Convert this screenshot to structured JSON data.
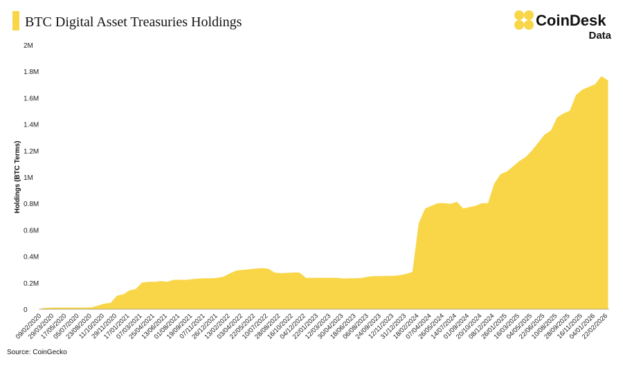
{
  "brand": {
    "name": "CoinDesk",
    "sub": "Data"
  },
  "chart_data": {
    "type": "area",
    "title": "BTC Digital Asset Treasuries Holdings",
    "y_label": "Holdings (BTC Terms)",
    "source": "Source: CoinGecko",
    "color": "#f8d648",
    "grid": false,
    "categories": [
      "09/02/2020",
      null,
      "29/03/2020",
      null,
      "17/05/2020",
      null,
      "05/07/2020",
      null,
      "23/08/2020",
      null,
      "11/10/2020",
      null,
      "29/11/2020",
      null,
      "17/01/2021",
      null,
      "07/03/2021",
      null,
      "25/04/2021",
      null,
      "13/06/2021",
      null,
      "01/08/2021",
      null,
      "19/09/2021",
      null,
      "07/11/2021",
      null,
      "26/12/2021",
      null,
      "13/02/2022",
      null,
      "03/04/2022",
      null,
      "22/05/2022",
      null,
      "10/07/2022",
      null,
      "28/08/2022",
      null,
      "16/10/2022",
      null,
      "04/12/2022",
      null,
      "22/01/2023",
      null,
      "12/03/2023",
      null,
      "30/04/2023",
      null,
      "18/06/2023",
      null,
      "06/08/2023",
      null,
      "24/09/2023",
      null,
      "12/11/2023",
      null,
      "31/12/2023",
      null,
      "18/02/2024",
      null,
      "07/04/2024",
      null,
      "26/05/2024",
      null,
      "14/07/2024",
      null,
      "01/09/2024",
      null,
      "20/10/2024",
      null,
      "08/12/2024",
      null,
      "26/01/2025",
      null,
      "16/03/2025",
      null,
      "04/05/2025",
      null,
      "22/06/2025",
      null,
      "10/08/2025",
      null,
      "28/09/2025",
      null,
      "16/11/2025",
      null,
      "04/01/2026",
      null,
      "22/02/2026"
    ],
    "values": [
      5000,
      8000,
      10000,
      10000,
      10000,
      10000,
      10000,
      10000,
      12000,
      25000,
      40000,
      45000,
      100000,
      110000,
      140000,
      150000,
      200000,
      205000,
      205000,
      210000,
      205000,
      220000,
      220000,
      220000,
      225000,
      230000,
      232000,
      232000,
      235000,
      245000,
      270000,
      290000,
      295000,
      300000,
      305000,
      308000,
      305000,
      275000,
      270000,
      272000,
      275000,
      275000,
      235000,
      235000,
      235000,
      235000,
      235000,
      235000,
      230000,
      232000,
      232000,
      235000,
      245000,
      248000,
      248000,
      250000,
      250000,
      255000,
      265000,
      280000,
      650000,
      760000,
      780000,
      800000,
      800000,
      795000,
      810000,
      760000,
      770000,
      780000,
      800000,
      800000,
      950000,
      1020000,
      1040000,
      1080000,
      1120000,
      1150000,
      1200000,
      1260000,
      1320000,
      1350000,
      1450000,
      1480000,
      1500000,
      1620000,
      1660000,
      1680000,
      1700000,
      1760000,
      1730000
    ],
    "ylim": [
      0,
      2000000
    ],
    "yticks": [
      0,
      {
        "value": 200000,
        "label": "0.2M"
      },
      {
        "value": 400000,
        "label": "0.4M"
      },
      {
        "value": 600000,
        "label": "0.6M"
      },
      {
        "value": 800000,
        "label": "0.8M"
      },
      {
        "value": 1000000,
        "label": "1M"
      },
      {
        "value": 1200000,
        "label": "1.2M"
      },
      {
        "value": 1400000,
        "label": "1.4M"
      },
      {
        "value": 1600000,
        "label": "1.6M"
      },
      {
        "value": 1800000,
        "label": "1.8M"
      },
      {
        "value": 2000000,
        "label": "2M"
      }
    ]
  }
}
